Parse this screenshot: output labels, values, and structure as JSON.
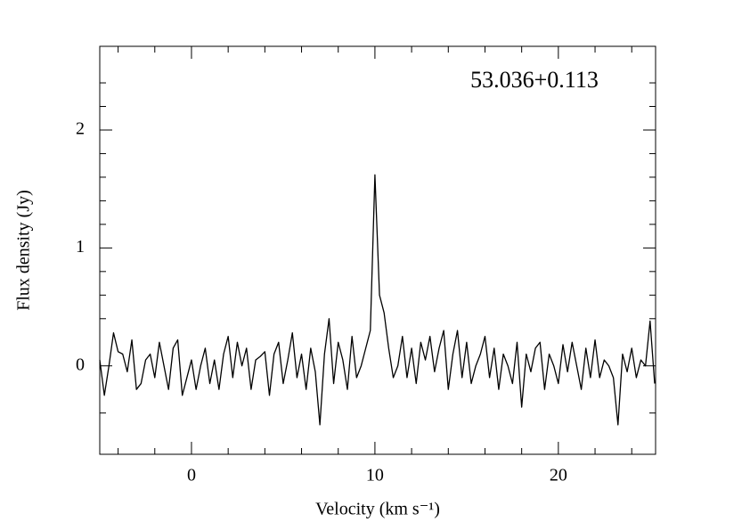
{
  "chart_data": {
    "type": "line",
    "title": "53.036+0.113",
    "xlabel": "Velocity (km s⁻¹)",
    "ylabel": "Flux density (Jy)",
    "color": "#000000",
    "xlim": [
      -5,
      25.3
    ],
    "ylim": [
      -0.75,
      2.71
    ],
    "xticks": [
      0,
      10,
      20
    ],
    "yticks": [
      0,
      1,
      2
    ],
    "xminorticks": [
      -4,
      -2,
      2,
      4,
      6,
      8,
      12,
      14,
      16,
      18,
      22,
      24
    ],
    "yminorticks": [
      -0.4,
      0.4,
      0.6,
      0.8,
      1.2,
      1.4,
      1.6,
      1.8,
      2.2,
      2.4
    ],
    "x": [
      -5,
      -4.75,
      -4.5,
      -4.25,
      -4,
      -3.75,
      -3.5,
      -3.25,
      -3,
      -2.75,
      -2.5,
      -2.25,
      -2,
      -1.75,
      -1.5,
      -1.25,
      -1,
      -0.75,
      -0.5,
      -0.25,
      0,
      0.25,
      0.5,
      0.75,
      1,
      1.25,
      1.5,
      1.75,
      2,
      2.25,
      2.5,
      2.75,
      3,
      3.25,
      3.5,
      3.75,
      4,
      4.25,
      4.5,
      4.75,
      5,
      5.25,
      5.5,
      5.75,
      6,
      6.25,
      6.5,
      6.75,
      7,
      7.25,
      7.5,
      7.75,
      8,
      8.25,
      8.5,
      8.75,
      9,
      9.25,
      9.5,
      9.75,
      10,
      10.25,
      10.5,
      10.75,
      11,
      11.25,
      11.5,
      11.75,
      12,
      12.25,
      12.5,
      12.75,
      13,
      13.25,
      13.5,
      13.75,
      14,
      14.25,
      14.5,
      14.75,
      15,
      15.25,
      15.5,
      15.75,
      16,
      16.25,
      16.5,
      16.75,
      17,
      17.25,
      17.5,
      17.75,
      18,
      18.25,
      18.5,
      18.75,
      19,
      19.25,
      19.5,
      19.75,
      20,
      20.25,
      20.5,
      20.75,
      21,
      21.25,
      21.5,
      21.75,
      22,
      22.25,
      22.5,
      22.75,
      23,
      23.25,
      23.5,
      23.75,
      24,
      24.25,
      24.5,
      24.75,
      25,
      25.25
    ],
    "values": [
      0.05,
      -0.25,
      0.0,
      0.28,
      0.12,
      0.1,
      -0.05,
      0.22,
      -0.2,
      -0.15,
      0.05,
      0.1,
      -0.1,
      0.2,
      0.0,
      -0.2,
      0.15,
      0.22,
      -0.25,
      -0.1,
      0.05,
      -0.2,
      0.0,
      0.15,
      -0.15,
      0.05,
      -0.2,
      0.1,
      0.25,
      -0.1,
      0.2,
      0.0,
      0.15,
      -0.2,
      0.05,
      0.08,
      0.12,
      -0.25,
      0.1,
      0.2,
      -0.15,
      0.05,
      0.28,
      -0.1,
      0.1,
      -0.2,
      0.15,
      -0.05,
      -0.5,
      0.1,
      0.4,
      -0.15,
      0.2,
      0.05,
      -0.2,
      0.25,
      -0.1,
      0.0,
      0.15,
      0.3,
      1.62,
      0.6,
      0.45,
      0.15,
      -0.1,
      0.0,
      0.25,
      -0.1,
      0.15,
      -0.15,
      0.2,
      0.05,
      0.25,
      -0.05,
      0.15,
      0.3,
      -0.2,
      0.1,
      0.3,
      -0.1,
      0.2,
      -0.15,
      0.0,
      0.1,
      0.25,
      -0.1,
      0.15,
      -0.2,
      0.1,
      0.0,
      -0.15,
      0.2,
      -0.35,
      0.1,
      -0.05,
      0.15,
      0.2,
      -0.2,
      0.1,
      0.0,
      -0.15,
      0.18,
      -0.05,
      0.2,
      0.0,
      -0.2,
      0.15,
      -0.1,
      0.22,
      -0.1,
      0.05,
      0.0,
      -0.1,
      -0.5,
      0.1,
      -0.05,
      0.15,
      -0.1,
      0.05,
      0.0,
      0.38,
      -0.15
    ]
  }
}
